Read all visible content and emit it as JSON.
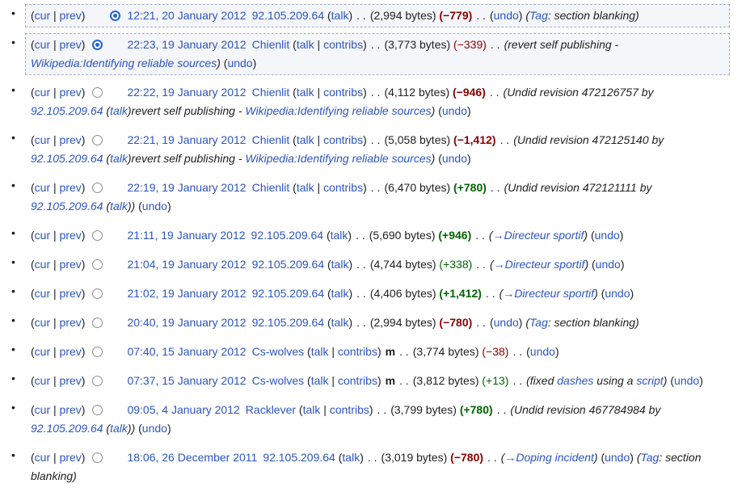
{
  "colors": {
    "link": "#2c55c2",
    "negative": "#8b0000",
    "positive": "#006400",
    "text": "#202122",
    "selected_bg": "#f5f6fa",
    "selected_border": "#a2aec8",
    "radio_checked": "#2164d2"
  },
  "labels": {
    "cur": "cur",
    "prev": "prev",
    "pipe": " | ",
    "paren_open": "(",
    "paren_close": ")",
    "talk": "talk",
    "contribs": "contribs",
    "minor_flag": "m",
    "dots_separator": ". .",
    "undo": "undo",
    "tag_link": "Tag",
    "tag_suffix": ": section blanking)",
    "tag_open": "("
  },
  "rows": [
    {
      "selected": true,
      "radio_old": "hidden",
      "radio_new": "checked",
      "timestamp": "12:21, 20 January 2012",
      "user": "92.105.209.64",
      "user_links": [
        "talk"
      ],
      "minor": false,
      "bytes": "2,994 bytes",
      "diff": {
        "v": "−779",
        "sign": "neg",
        "strong": true
      },
      "comment": [],
      "tag": true
    },
    {
      "selected": true,
      "radio_old": "checked",
      "radio_new": "hidden",
      "timestamp": "22:23, 19 January 2012",
      "user": "Chienlit",
      "user_links": [
        "talk",
        "contribs"
      ],
      "minor": false,
      "bytes": "3,773 bytes",
      "diff": {
        "v": "−339",
        "sign": "neg",
        "strong": false
      },
      "comment": [
        {
          "t": "(revert self publishing - "
        },
        {
          "t": "Wikipedia:Identifying reliable sources",
          "link": true
        },
        {
          "t": ")"
        }
      ],
      "tag": false
    },
    {
      "selected": false,
      "radio_old": "unchecked",
      "radio_new": "hidden",
      "timestamp": "22:22, 19 January 2012",
      "user": "Chienlit",
      "user_links": [
        "talk",
        "contribs"
      ],
      "minor": false,
      "bytes": "4,112 bytes",
      "diff": {
        "v": "−946",
        "sign": "neg",
        "strong": true
      },
      "comment": [
        {
          "t": "(Undid revision 472126757 by "
        },
        {
          "t": "92.105.209.64",
          "link": true
        },
        {
          "t": " ("
        },
        {
          "t": "talk",
          "link": true
        },
        {
          "t": ")revert self publishing - "
        },
        {
          "t": "Wikipedia:Identifying reliable sources",
          "link": true
        },
        {
          "t": ")"
        }
      ],
      "tag": false
    },
    {
      "selected": false,
      "radio_old": "unchecked",
      "radio_new": "hidden",
      "timestamp": "22:21, 19 January 2012",
      "user": "Chienlit",
      "user_links": [
        "talk",
        "contribs"
      ],
      "minor": false,
      "bytes": "5,058 bytes",
      "diff": {
        "v": "−1,412",
        "sign": "neg",
        "strong": true
      },
      "comment": [
        {
          "t": "(Undid revision 472125140 by "
        },
        {
          "t": "92.105.209.64",
          "link": true
        },
        {
          "t": " ("
        },
        {
          "t": "talk",
          "link": true
        },
        {
          "t": ")revert self publishing - "
        },
        {
          "t": "Wikipedia:Identifying reliable sources",
          "link": true
        },
        {
          "t": ")"
        }
      ],
      "tag": false
    },
    {
      "selected": false,
      "radio_old": "unchecked",
      "radio_new": "hidden",
      "timestamp": "22:19, 19 January 2012",
      "user": "Chienlit",
      "user_links": [
        "talk",
        "contribs"
      ],
      "minor": false,
      "bytes": "6,470 bytes",
      "diff": {
        "v": "+780",
        "sign": "pos",
        "strong": true
      },
      "comment": [
        {
          "t": "(Undid revision 472121111 by "
        },
        {
          "t": "92.105.209.64",
          "link": true
        },
        {
          "t": " ("
        },
        {
          "t": "talk",
          "link": true
        },
        {
          "t": "))"
        }
      ],
      "tag": false
    },
    {
      "selected": false,
      "radio_old": "unchecked",
      "radio_new": "hidden",
      "timestamp": "21:11, 19 January 2012",
      "user": "92.105.209.64",
      "user_links": [
        "talk"
      ],
      "minor": false,
      "bytes": "5,690 bytes",
      "diff": {
        "v": "+946",
        "sign": "pos",
        "strong": true
      },
      "comment": [
        {
          "t": "("
        },
        {
          "t": "→Directeur sportif",
          "link": true
        },
        {
          "t": ")"
        }
      ],
      "tag": false
    },
    {
      "selected": false,
      "radio_old": "unchecked",
      "radio_new": "hidden",
      "timestamp": "21:04, 19 January 2012",
      "user": "92.105.209.64",
      "user_links": [
        "talk"
      ],
      "minor": false,
      "bytes": "4,744 bytes",
      "diff": {
        "v": "+338",
        "sign": "pos",
        "strong": false
      },
      "comment": [
        {
          "t": "("
        },
        {
          "t": "→Directeur sportif",
          "link": true
        },
        {
          "t": ")"
        }
      ],
      "tag": false
    },
    {
      "selected": false,
      "radio_old": "unchecked",
      "radio_new": "hidden",
      "timestamp": "21:02, 19 January 2012",
      "user": "92.105.209.64",
      "user_links": [
        "talk"
      ],
      "minor": false,
      "bytes": "4,406 bytes",
      "diff": {
        "v": "+1,412",
        "sign": "pos",
        "strong": true
      },
      "comment": [
        {
          "t": "("
        },
        {
          "t": "→Directeur sportif",
          "link": true
        },
        {
          "t": ")"
        }
      ],
      "tag": false
    },
    {
      "selected": false,
      "radio_old": "unchecked",
      "radio_new": "hidden",
      "timestamp": "20:40, 19 January 2012",
      "user": "92.105.209.64",
      "user_links": [
        "talk"
      ],
      "minor": false,
      "bytes": "2,994 bytes",
      "diff": {
        "v": "−780",
        "sign": "neg",
        "strong": true
      },
      "comment": [],
      "tag": true
    },
    {
      "selected": false,
      "radio_old": "unchecked",
      "radio_new": "hidden",
      "timestamp": "07:40, 15 January 2012",
      "user": "Cs-wolves",
      "user_links": [
        "talk",
        "contribs"
      ],
      "minor": true,
      "bytes": "3,774 bytes",
      "diff": {
        "v": "−38",
        "sign": "neg",
        "strong": false
      },
      "comment": [],
      "tag": false
    },
    {
      "selected": false,
      "radio_old": "unchecked",
      "radio_new": "hidden",
      "timestamp": "07:37, 15 January 2012",
      "user": "Cs-wolves",
      "user_links": [
        "talk",
        "contribs"
      ],
      "minor": true,
      "bytes": "3,812 bytes",
      "diff": {
        "v": "+13",
        "sign": "pos",
        "strong": false
      },
      "comment": [
        {
          "t": "(fixed "
        },
        {
          "t": "dashes",
          "link": true
        },
        {
          "t": " using a "
        },
        {
          "t": "script",
          "link": true
        },
        {
          "t": ")"
        }
      ],
      "tag": false
    },
    {
      "selected": false,
      "radio_old": "unchecked",
      "radio_new": "hidden",
      "timestamp": "09:05, 4 January 2012",
      "user": "Racklever",
      "user_links": [
        "talk",
        "contribs"
      ],
      "minor": false,
      "bytes": "3,799 bytes",
      "diff": {
        "v": "+780",
        "sign": "pos",
        "strong": true
      },
      "comment": [
        {
          "t": "(Undid revision 467784984 by "
        },
        {
          "t": "92.105.209.64",
          "link": true
        },
        {
          "t": " ("
        },
        {
          "t": "talk",
          "link": true
        },
        {
          "t": "))"
        }
      ],
      "tag": false
    },
    {
      "selected": false,
      "radio_old": "unchecked",
      "radio_new": "hidden",
      "timestamp": "18:06, 26 December 2011",
      "user": "92.105.209.64",
      "user_links": [
        "talk"
      ],
      "minor": false,
      "bytes": "3,019 bytes",
      "diff": {
        "v": "−780",
        "sign": "neg",
        "strong": true
      },
      "comment": [
        {
          "t": "("
        },
        {
          "t": "→Doping incident",
          "link": true
        },
        {
          "t": ")"
        }
      ],
      "tag": true
    }
  ]
}
